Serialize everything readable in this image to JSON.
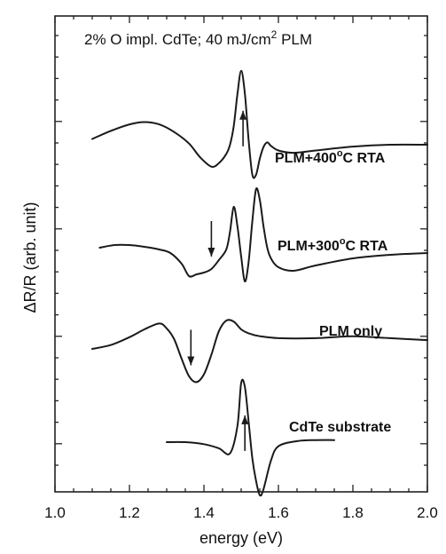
{
  "chart_data": {
    "type": "line",
    "title": "2% O impl. CdTe; 40 mJ/cm² PLM",
    "xlabel": "energy (eV)",
    "ylabel": "ΔR/R (arb. unit)",
    "xlim": [
      1.0,
      2.0
    ],
    "x_ticks": [
      "1.0",
      "1.2",
      "1.4",
      "1.6",
      "1.8",
      "2.0"
    ],
    "grid": false,
    "series": [
      {
        "name": "PLM+400°C RTA",
        "x": [
          1.1,
          1.15,
          1.2,
          1.24,
          1.28,
          1.32,
          1.36,
          1.39,
          1.42,
          1.44,
          1.46,
          1.47,
          1.48,
          1.49,
          1.5,
          1.51,
          1.52,
          1.53,
          1.54,
          1.55,
          1.56,
          1.57,
          1.58,
          1.6,
          1.64,
          1.7,
          1.8,
          1.9,
          2.0
        ],
        "y": [
          0.25,
          0.6,
          0.88,
          0.98,
          0.88,
          0.55,
          0.05,
          -0.55,
          -0.95,
          -0.8,
          -0.4,
          0.0,
          0.8,
          2.2,
          3.2,
          2.2,
          0.2,
          -1.3,
          -1.3,
          -0.6,
          -0.1,
          0.1,
          -0.05,
          -0.25,
          -0.35,
          -0.25,
          -0.08,
          0.0,
          0.0
        ]
      },
      {
        "name": "PLM+300°C RTA",
        "x": [
          1.12,
          1.16,
          1.2,
          1.24,
          1.28,
          1.31,
          1.34,
          1.36,
          1.38,
          1.4,
          1.42,
          1.44,
          1.46,
          1.47,
          1.48,
          1.49,
          1.5,
          1.51,
          1.52,
          1.53,
          1.54,
          1.55,
          1.56,
          1.57,
          1.58,
          1.6,
          1.64,
          1.7,
          1.8,
          1.9,
          2.0
        ],
        "y": [
          0.3,
          0.45,
          0.45,
          0.35,
          0.2,
          0.0,
          -0.6,
          -1.3,
          -1.2,
          -1.1,
          -0.9,
          -0.4,
          0.2,
          1.2,
          2.6,
          1.5,
          -0.2,
          -1.6,
          -0.5,
          1.8,
          3.6,
          3.0,
          1.5,
          0.3,
          -0.3,
          -0.8,
          -1.0,
          -0.7,
          -0.3,
          -0.1,
          0.0
        ]
      },
      {
        "name": "PLM only",
        "x": [
          1.1,
          1.15,
          1.2,
          1.24,
          1.28,
          1.3,
          1.32,
          1.34,
          1.36,
          1.38,
          1.4,
          1.42,
          1.44,
          1.46,
          1.48,
          1.5,
          1.52,
          1.55,
          1.6,
          1.7,
          1.8,
          1.9,
          2.0
        ],
        "y": [
          -0.5,
          -0.3,
          0.1,
          0.5,
          0.8,
          0.55,
          0.0,
          -1.0,
          -1.9,
          -2.2,
          -1.8,
          -0.8,
          0.4,
          0.95,
          0.9,
          0.5,
          0.3,
          0.15,
          0.05,
          0.05,
          0.15,
          0.05,
          -0.05
        ]
      },
      {
        "name": "CdTe substrate",
        "x": [
          1.3,
          1.35,
          1.4,
          1.44,
          1.47,
          1.49,
          1.5,
          1.51,
          1.52,
          1.53,
          1.54,
          1.55,
          1.56,
          1.58,
          1.6,
          1.65,
          1.7,
          1.75
        ],
        "y": [
          0.0,
          0.0,
          -0.1,
          -0.3,
          -0.55,
          0.8,
          2.9,
          2.7,
          1.0,
          -0.8,
          -1.9,
          -2.6,
          -2.3,
          -0.9,
          -0.2,
          0.05,
          0.1,
          0.1
        ]
      }
    ],
    "annotations": [
      {
        "text": "2% O impl. CdTe; 40 mJ/cm",
        "superscript": "2",
        "suffix": " PLM"
      },
      {
        "text": "PLM+400",
        "superscript": "o",
        "suffix": "C RTA"
      },
      {
        "text": "PLM+300",
        "superscript": "o",
        "suffix": "C RTA"
      },
      {
        "text": "PLM only"
      },
      {
        "text": "CdTe substrate"
      }
    ],
    "arrows": [
      {
        "series": "PLM+400°C RTA",
        "x": 1.505,
        "direction": "up"
      },
      {
        "series": "PLM+300°C RTA",
        "x": 1.42,
        "direction": "down"
      },
      {
        "series": "PLM only",
        "x": 1.365,
        "direction": "down"
      },
      {
        "series": "CdTe substrate",
        "x": 1.51,
        "direction": "up"
      }
    ]
  }
}
